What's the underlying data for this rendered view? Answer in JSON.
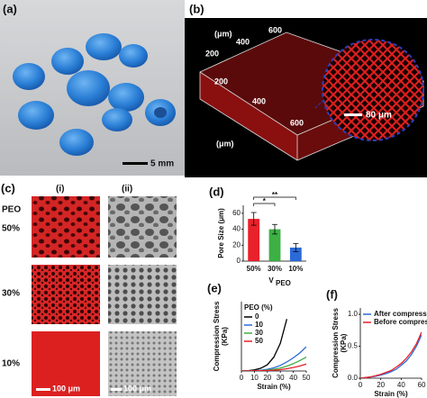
{
  "panels": {
    "a": {
      "label": "(a)",
      "scale_bar": "5 mm"
    },
    "b": {
      "label": "(b)",
      "unit_top": "(μm)",
      "top_ticks": [
        "200",
        "400",
        "600"
      ],
      "front_ticks": [
        "200",
        "400",
        "600"
      ],
      "unit_bottom": "(μm)",
      "inset_scale": "80 μm"
    },
    "c": {
      "label": "(c)",
      "columns": [
        "(i)",
        "(ii)"
      ],
      "row_title": "PEO",
      "rows": [
        "50%",
        "30%",
        "10%"
      ],
      "scale_bars": [
        "100 μm",
        "100 μm"
      ]
    }
  },
  "chart_data": [
    {
      "type": "bar",
      "panel_label": "(d)",
      "ylabel": [
        "Pore Size (μm)"
      ],
      "xlabel": "V",
      "xlabel_subscript": "PEO",
      "categories": [
        "50%",
        "30%",
        "10%"
      ],
      "values": [
        53,
        40,
        17
      ],
      "errors": [
        8,
        6,
        5
      ],
      "colors": [
        "#e8212b",
        "#3cb043",
        "#2a6ad8"
      ],
      "ylim": [
        0,
        70
      ],
      "yticks": [
        0,
        20,
        40,
        60
      ],
      "annotations": [
        "*",
        "**"
      ]
    },
    {
      "type": "line",
      "panel_label": "(e)",
      "ylabel": [
        "Compression Stress",
        "(KPa)"
      ],
      "xlabel": "Strain (%)",
      "x": [
        0,
        5,
        10,
        15,
        20,
        25,
        30,
        35,
        40,
        45,
        50
      ],
      "xlim": [
        0,
        50
      ],
      "xticks": [
        0,
        10,
        20,
        30,
        40,
        50
      ],
      "ylim": [
        0,
        10
      ],
      "legend_title": "PEO (%)",
      "series": [
        {
          "name": "0",
          "color": "#000000",
          "values": [
            0,
            0.05,
            0.15,
            0.4,
            0.9,
            2,
            4,
            7.5,
            null,
            null,
            null
          ]
        },
        {
          "name": "10",
          "color": "#2a6ad8",
          "values": [
            0,
            0.02,
            0.05,
            0.12,
            0.25,
            0.45,
            0.8,
            1.3,
            1.9,
            2.6,
            3.5
          ]
        },
        {
          "name": "30",
          "color": "#3cb043",
          "values": [
            0,
            0.01,
            0.03,
            0.07,
            0.13,
            0.25,
            0.42,
            0.7,
            1.05,
            1.5,
            2
          ]
        },
        {
          "name": "50",
          "color": "#e8212b",
          "values": [
            0,
            0.01,
            0.02,
            0.04,
            0.07,
            0.12,
            0.2,
            0.32,
            0.5,
            0.72,
            1
          ]
        }
      ]
    },
    {
      "type": "line",
      "panel_label": "(f)",
      "ylabel": [
        "Compression Stress",
        "(KPa)"
      ],
      "xlabel": "Strain (%)",
      "x": [
        0,
        5,
        10,
        15,
        20,
        25,
        30,
        35,
        40,
        45,
        50,
        55,
        60
      ],
      "xlim": [
        0,
        60
      ],
      "xticks": [
        0,
        20,
        40,
        60
      ],
      "ylim": [
        0,
        1.1
      ],
      "yticks": [
        {
          "value": 0,
          "label": "0.0"
        },
        {
          "value": 0.5,
          "label": "0.5"
        },
        {
          "value": 1,
          "label": "1.0"
        }
      ],
      "series": [
        {
          "name": "After compression",
          "color": "#2a6ad8",
          "values": [
            0,
            0.01,
            0.02,
            0.03,
            0.05,
            0.07,
            0.1,
            0.14,
            0.2,
            0.27,
            0.37,
            0.5,
            0.68
          ]
        },
        {
          "name": "Before compression",
          "color": "#e8212b",
          "values": [
            0,
            0.01,
            0.02,
            0.04,
            0.06,
            0.09,
            0.12,
            0.17,
            0.23,
            0.31,
            0.41,
            0.54,
            0.72
          ]
        }
      ]
    }
  ]
}
